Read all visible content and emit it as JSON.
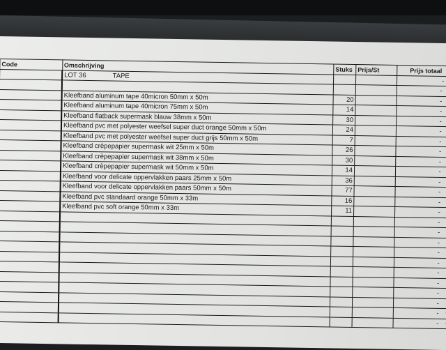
{
  "table": {
    "headers": [
      "Code",
      "Omschrijving",
      "Stuks",
      "Prijs/St",
      "Prijs totaal"
    ],
    "lot": "LOT 36",
    "lot_title": "TAPE",
    "total_placeholder": "-",
    "currency": "€",
    "items": [
      {
        "desc": "Kleefband aluminum tape  40micron   50mm x 50m",
        "qty": "20"
      },
      {
        "desc": "Kleefband aluminum tape  40micron   75mm x 50m",
        "qty": "14"
      },
      {
        "desc": "Kleefband flatback supermask   blauw   38mm x 50m",
        "qty": "30"
      },
      {
        "desc": "Kleefband pvc met polyester weefsel super duct  orange   50mm x 50m",
        "qty": "24"
      },
      {
        "desc": "Kleefband pvc met polyester weefsel super duct  grijs   50mm x 50m",
        "qty": "7"
      },
      {
        "desc": "Kleefband crèpepapier supermask   wit   25mm x 50m",
        "qty": "26"
      },
      {
        "desc": "Kleefband crèpepapier supermask   wit   38mm x 50m",
        "qty": "30"
      },
      {
        "desc": "Kleefband crèpepapier supermask   wit   50mm x 50m",
        "qty": "14"
      },
      {
        "desc": "Kleefband voor delicate oppervlakken   paars   25mm x 50m",
        "qty": "36"
      },
      {
        "desc": "Kleefband voor delicate oppervlakken   paars   50mm x 50m",
        "qty": "77"
      },
      {
        "desc": "Kleefband pvc standaard  orange   50mm x 33m",
        "qty": "16"
      },
      {
        "desc": "Kleefband pvc soft  orange   50mm x 33m",
        "qty": "11"
      }
    ]
  }
}
